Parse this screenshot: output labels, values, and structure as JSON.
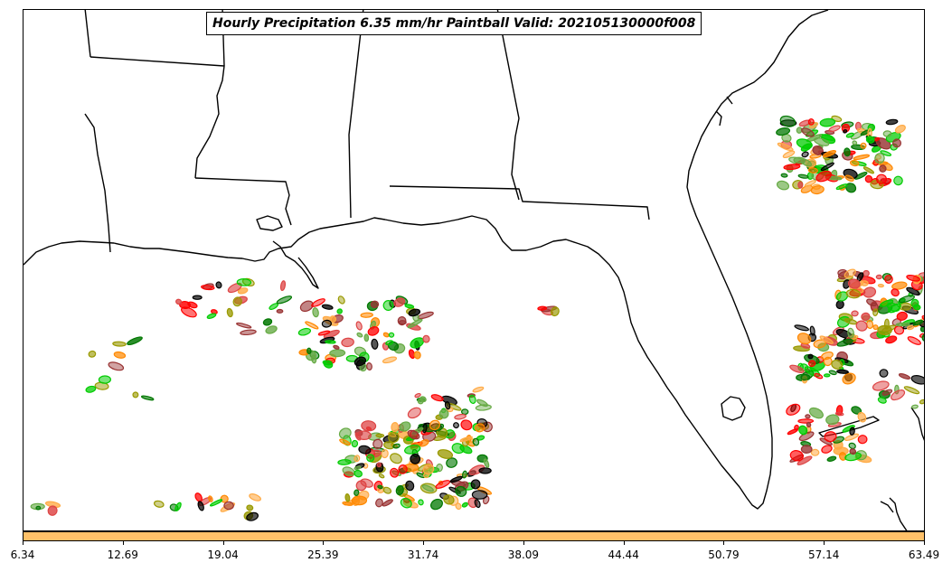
{
  "map": {
    "title": "Hourly Precipitation 6.35 mm/hr Paintball Valid: 202105130000f008",
    "colorbar": {
      "fill_color": "#ffc169",
      "tick_labels": [
        "6.34",
        "12.69",
        "19.04",
        "25.39",
        "31.74",
        "38.09",
        "44.44",
        "50.79",
        "57.14",
        "63.49"
      ]
    },
    "member_colors": [
      "#00cc00",
      "#007700",
      "#999900",
      "#ff8800",
      "#ffaa44",
      "#ff0000",
      "#993333",
      "#000000",
      "#dd4444",
      "#66aa44"
    ],
    "region": "US Gulf Coast and Florida",
    "projection_features": [
      "coastline",
      "state-borders"
    ]
  }
}
